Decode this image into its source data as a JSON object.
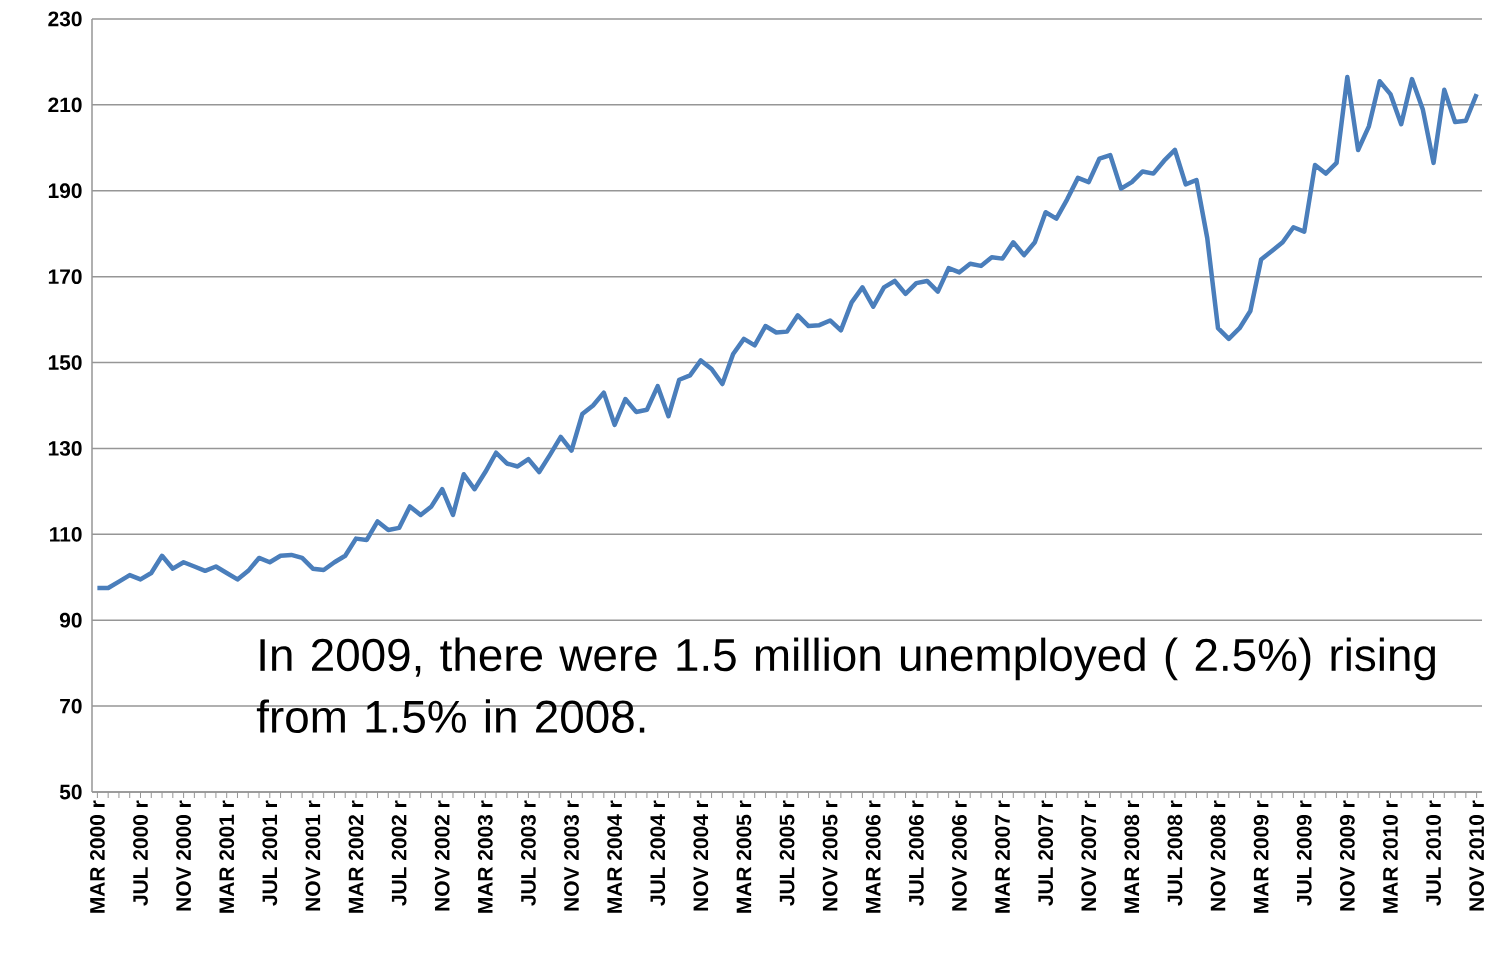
{
  "chart_data": {
    "type": "line",
    "categories": [
      "MAR 2000 r",
      null,
      null,
      null,
      "JUL 2000 r",
      null,
      null,
      null,
      "NOV 2000 r",
      null,
      null,
      null,
      "MAR 2001 r",
      null,
      null,
      null,
      "JUL 2001 r",
      null,
      null,
      null,
      "NOV 2001 r",
      null,
      null,
      null,
      "MAR 2002 r",
      null,
      null,
      null,
      "JUL 2002 r",
      null,
      null,
      null,
      "NOV 2002 r",
      null,
      null,
      null,
      "MAR 2003 r",
      null,
      null,
      null,
      "JUL 2003 r",
      null,
      null,
      null,
      "NOV 2003 r",
      null,
      null,
      null,
      "MAR 2004 r",
      null,
      null,
      null,
      "JUL 2004 r",
      null,
      null,
      null,
      "NOV 2004 r",
      null,
      null,
      null,
      "MAR 2005 r",
      null,
      null,
      null,
      "JUL 2005 r",
      null,
      null,
      null,
      "NOV 2005 r",
      null,
      null,
      null,
      "MAR 2006 r",
      null,
      null,
      null,
      "JUL 2006 r",
      null,
      null,
      null,
      "NOV 2006 r",
      null,
      null,
      null,
      "MAR 2007 r",
      null,
      null,
      null,
      "JUL 2007 r",
      null,
      null,
      null,
      "NOV 2007 r",
      null,
      null,
      null,
      "MAR 2008 r",
      null,
      null,
      null,
      "JUL 2008 r",
      null,
      null,
      null,
      "NOV 2008 r",
      null,
      null,
      null,
      "MAR 2009 r",
      null,
      null,
      null,
      "JUL 2009 r",
      null,
      null,
      null,
      "NOV 2009 r",
      null,
      null,
      null,
      "MAR 2010 r",
      null,
      null,
      null,
      "JUL 2010 r",
      null,
      null,
      null,
      "NOV 2010 r"
    ],
    "values": [
      97.5,
      97.5,
      99,
      100.5,
      99.5,
      101,
      105,
      102,
      103.5,
      102.5,
      101.5,
      102.5,
      101,
      99.5,
      101.5,
      104.5,
      103.5,
      105,
      105.2,
      104.5,
      102,
      101.7,
      103.5,
      105,
      109,
      108.7,
      113,
      111,
      111.5,
      116.5,
      114.5,
      116.5,
      120.5,
      114.5,
      124,
      120.5,
      124.5,
      129,
      126.5,
      125.8,
      127.5,
      124.5,
      128.5,
      132.7,
      129.5,
      138,
      140,
      143,
      135.5,
      141.5,
      138.5,
      139,
      144.5,
      137.5,
      146,
      147,
      150.5,
      148.5,
      145,
      152,
      155.5,
      154,
      158.5,
      157,
      157.2,
      161,
      158.5,
      158.7,
      159.8,
      157.5,
      164,
      167.5,
      163,
      167.5,
      169,
      166,
      168.5,
      169,
      166.5,
      172,
      171,
      173,
      172.5,
      174.5,
      174.2,
      178,
      175,
      178,
      185,
      183.5,
      188,
      193,
      192,
      197.5,
      198.3,
      190.5,
      192,
      194.5,
      194,
      197,
      199.5,
      191.5,
      192.5,
      179,
      158,
      155.5,
      158,
      162,
      174,
      176,
      178,
      181.5,
      180.5,
      196,
      194,
      196.5,
      216.5,
      199.5,
      205,
      215.5,
      212.5,
      205.5,
      216,
      209,
      196.5,
      213.5,
      206,
      206.3,
      212.5
    ],
    "color": "#4a7ebb",
    "ylim": [
      50,
      230
    ],
    "yticks": [
      50,
      70,
      90,
      110,
      130,
      150,
      170,
      190,
      210,
      230
    ],
    "grid": "y",
    "marker": "none",
    "line_style": "solid",
    "annotations": [
      "In 2009, there were 1.5 million unemployed ( 2.5%) rising from 1.5% in 2008."
    ]
  }
}
